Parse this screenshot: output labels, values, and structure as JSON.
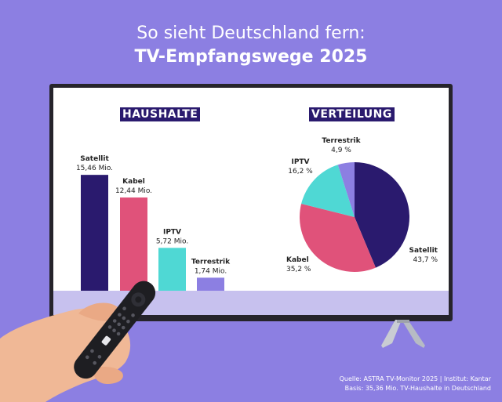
{
  "header": {
    "title_line1": "So sieht Deutschland fern:",
    "title_line2": "TV-Empfangswege 2025"
  },
  "panels": {
    "left_heading": "HAUSHALTE",
    "right_heading": "VERTEILUNG"
  },
  "chart_data": [
    {
      "type": "bar",
      "title": "HAUSHALTE",
      "categories": [
        "Satellit",
        "Kabel",
        "IPTV",
        "Terrestrik"
      ],
      "values": [
        15.46,
        12.44,
        5.72,
        1.74
      ],
      "value_labels": [
        "15,46 Mio.",
        "12,44 Mio.",
        "5,72 Mio.",
        "1,74 Mio."
      ],
      "colors": [
        "#2a1a6e",
        "#e0527a",
        "#4fd8d4",
        "#8c7fe2"
      ],
      "ylim": [
        0,
        16
      ]
    },
    {
      "type": "pie",
      "title": "VERTEILUNG",
      "categories": [
        "Satellit",
        "Kabel",
        "IPTV",
        "Terrestrik"
      ],
      "values": [
        43.7,
        35.2,
        16.2,
        4.9
      ],
      "value_labels": [
        "43,7 %",
        "35,2 %",
        "16,2 %",
        "4,9 %"
      ],
      "colors": [
        "#2a1a6e",
        "#e0527a",
        "#4fd8d4",
        "#8c7fe2"
      ]
    }
  ],
  "footer": {
    "source_line1": "Quelle: ASTRA TV-Monitor 2025 | Institut: Kantar",
    "source_line2": "Basis: 35,36 Mio. TV-Haushalte in Deutschland"
  },
  "icons": {
    "remote": "tv-remote-icon",
    "hand": "hand-icon",
    "stand": "tv-stand-icon"
  }
}
